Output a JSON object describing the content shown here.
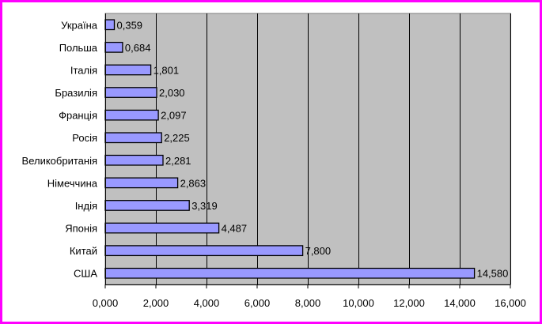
{
  "chart_data": {
    "type": "bar",
    "orientation": "horizontal",
    "categories": [
      "Україна",
      "Польша",
      "Італія",
      "Бразилія",
      "Франція",
      "Росія",
      "Великобританія",
      "Німеччина",
      "Індія",
      "Японія",
      "Китай",
      "США"
    ],
    "values": [
      0.359,
      0.684,
      1.801,
      2.03,
      2.097,
      2.225,
      2.281,
      2.863,
      3.319,
      4.487,
      7.8,
      14.58
    ],
    "value_labels": [
      "0,359",
      "0,684",
      "1,801",
      "2,030",
      "2,097",
      "2,225",
      "2,281",
      "2,863",
      "3,319",
      "4,487",
      "7,800",
      "14,580"
    ],
    "xlim": [
      0,
      16
    ],
    "xticks": [
      0,
      2,
      4,
      6,
      8,
      10,
      12,
      14,
      16
    ],
    "xtick_labels": [
      "0,000",
      "2,000",
      "4,000",
      "6,000",
      "8,000",
      "10,000",
      "12,000",
      "14,000",
      "16,000"
    ],
    "grid": true,
    "title": "",
    "xlabel": "",
    "ylabel": "",
    "colors": {
      "bar_fill": "#9999ff",
      "bar_stroke": "#000000",
      "plot_background": "#c0c0c0",
      "frame_border": "#ff00ff",
      "gridline": "#000000"
    }
  }
}
